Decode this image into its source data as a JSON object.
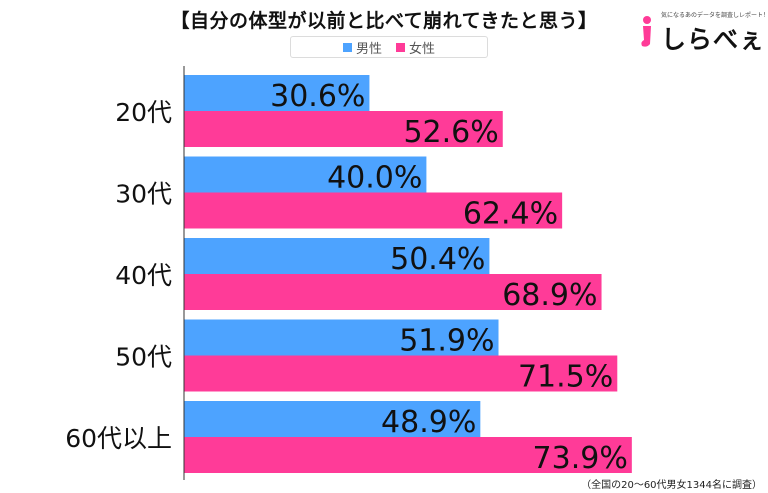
{
  "chart_data": {
    "type": "bar",
    "orientation": "horizontal",
    "title": "【自分の体型が以前と比べて崩れてきたと思う】",
    "categories": [
      "20代",
      "30代",
      "40代",
      "50代",
      "60代以上"
    ],
    "series": [
      {
        "name": "男性",
        "values": [
          30.6,
          40.0,
          50.4,
          51.9,
          48.9
        ],
        "color": "#4da3ff"
      },
      {
        "name": "女性",
        "values": [
          52.6,
          62.4,
          68.9,
          71.5,
          73.9
        ],
        "color": "#ff3b98"
      }
    ],
    "value_labels": [
      [
        "30.6%",
        "40.0%",
        "50.4%",
        "51.9%",
        "48.9%"
      ],
      [
        "52.6%",
        "62.4%",
        "68.9%",
        "71.5%",
        "73.9%"
      ]
    ],
    "xlim": [
      0,
      100
    ],
    "grid": false,
    "legend_position": "top-center",
    "note": "（全国の20～60代男女1344名に調査）"
  },
  "logo": {
    "tagline": "気になるあのデータを調査しレポート！",
    "brand": "しらべぇ"
  }
}
